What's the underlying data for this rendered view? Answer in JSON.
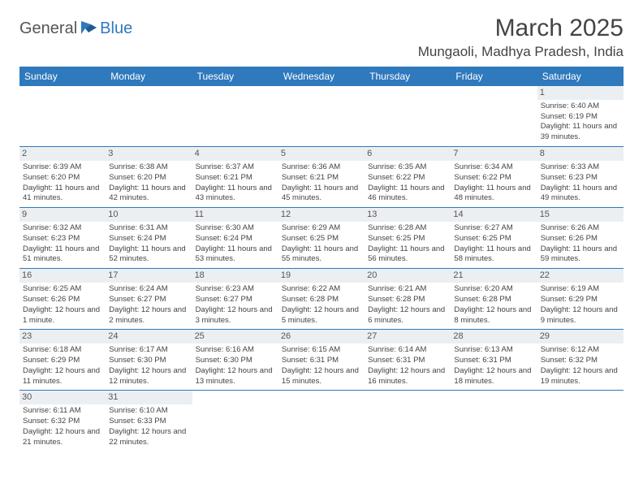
{
  "logo": {
    "general": "General",
    "blue": "Blue"
  },
  "title": "March 2025",
  "location": "Mungaoli, Madhya Pradesh, India",
  "colors": {
    "header_bg": "#2f79bd",
    "header_text": "#ffffff",
    "border": "#2f79bd",
    "daynum_bg": "#eceff2",
    "text": "#444444"
  },
  "day_headers": [
    "Sunday",
    "Monday",
    "Tuesday",
    "Wednesday",
    "Thursday",
    "Friday",
    "Saturday"
  ],
  "weeks": [
    [
      {
        "n": "",
        "sr": "",
        "ss": "",
        "dl": ""
      },
      {
        "n": "",
        "sr": "",
        "ss": "",
        "dl": ""
      },
      {
        "n": "",
        "sr": "",
        "ss": "",
        "dl": ""
      },
      {
        "n": "",
        "sr": "",
        "ss": "",
        "dl": ""
      },
      {
        "n": "",
        "sr": "",
        "ss": "",
        "dl": ""
      },
      {
        "n": "",
        "sr": "",
        "ss": "",
        "dl": ""
      },
      {
        "n": "1",
        "sr": "Sunrise: 6:40 AM",
        "ss": "Sunset: 6:19 PM",
        "dl": "Daylight: 11 hours and 39 minutes."
      }
    ],
    [
      {
        "n": "2",
        "sr": "Sunrise: 6:39 AM",
        "ss": "Sunset: 6:20 PM",
        "dl": "Daylight: 11 hours and 41 minutes."
      },
      {
        "n": "3",
        "sr": "Sunrise: 6:38 AM",
        "ss": "Sunset: 6:20 PM",
        "dl": "Daylight: 11 hours and 42 minutes."
      },
      {
        "n": "4",
        "sr": "Sunrise: 6:37 AM",
        "ss": "Sunset: 6:21 PM",
        "dl": "Daylight: 11 hours and 43 minutes."
      },
      {
        "n": "5",
        "sr": "Sunrise: 6:36 AM",
        "ss": "Sunset: 6:21 PM",
        "dl": "Daylight: 11 hours and 45 minutes."
      },
      {
        "n": "6",
        "sr": "Sunrise: 6:35 AM",
        "ss": "Sunset: 6:22 PM",
        "dl": "Daylight: 11 hours and 46 minutes."
      },
      {
        "n": "7",
        "sr": "Sunrise: 6:34 AM",
        "ss": "Sunset: 6:22 PM",
        "dl": "Daylight: 11 hours and 48 minutes."
      },
      {
        "n": "8",
        "sr": "Sunrise: 6:33 AM",
        "ss": "Sunset: 6:23 PM",
        "dl": "Daylight: 11 hours and 49 minutes."
      }
    ],
    [
      {
        "n": "9",
        "sr": "Sunrise: 6:32 AM",
        "ss": "Sunset: 6:23 PM",
        "dl": "Daylight: 11 hours and 51 minutes."
      },
      {
        "n": "10",
        "sr": "Sunrise: 6:31 AM",
        "ss": "Sunset: 6:24 PM",
        "dl": "Daylight: 11 hours and 52 minutes."
      },
      {
        "n": "11",
        "sr": "Sunrise: 6:30 AM",
        "ss": "Sunset: 6:24 PM",
        "dl": "Daylight: 11 hours and 53 minutes."
      },
      {
        "n": "12",
        "sr": "Sunrise: 6:29 AM",
        "ss": "Sunset: 6:25 PM",
        "dl": "Daylight: 11 hours and 55 minutes."
      },
      {
        "n": "13",
        "sr": "Sunrise: 6:28 AM",
        "ss": "Sunset: 6:25 PM",
        "dl": "Daylight: 11 hours and 56 minutes."
      },
      {
        "n": "14",
        "sr": "Sunrise: 6:27 AM",
        "ss": "Sunset: 6:25 PM",
        "dl": "Daylight: 11 hours and 58 minutes."
      },
      {
        "n": "15",
        "sr": "Sunrise: 6:26 AM",
        "ss": "Sunset: 6:26 PM",
        "dl": "Daylight: 11 hours and 59 minutes."
      }
    ],
    [
      {
        "n": "16",
        "sr": "Sunrise: 6:25 AM",
        "ss": "Sunset: 6:26 PM",
        "dl": "Daylight: 12 hours and 1 minute."
      },
      {
        "n": "17",
        "sr": "Sunrise: 6:24 AM",
        "ss": "Sunset: 6:27 PM",
        "dl": "Daylight: 12 hours and 2 minutes."
      },
      {
        "n": "18",
        "sr": "Sunrise: 6:23 AM",
        "ss": "Sunset: 6:27 PM",
        "dl": "Daylight: 12 hours and 3 minutes."
      },
      {
        "n": "19",
        "sr": "Sunrise: 6:22 AM",
        "ss": "Sunset: 6:28 PM",
        "dl": "Daylight: 12 hours and 5 minutes."
      },
      {
        "n": "20",
        "sr": "Sunrise: 6:21 AM",
        "ss": "Sunset: 6:28 PM",
        "dl": "Daylight: 12 hours and 6 minutes."
      },
      {
        "n": "21",
        "sr": "Sunrise: 6:20 AM",
        "ss": "Sunset: 6:28 PM",
        "dl": "Daylight: 12 hours and 8 minutes."
      },
      {
        "n": "22",
        "sr": "Sunrise: 6:19 AM",
        "ss": "Sunset: 6:29 PM",
        "dl": "Daylight: 12 hours and 9 minutes."
      }
    ],
    [
      {
        "n": "23",
        "sr": "Sunrise: 6:18 AM",
        "ss": "Sunset: 6:29 PM",
        "dl": "Daylight: 12 hours and 11 minutes."
      },
      {
        "n": "24",
        "sr": "Sunrise: 6:17 AM",
        "ss": "Sunset: 6:30 PM",
        "dl": "Daylight: 12 hours and 12 minutes."
      },
      {
        "n": "25",
        "sr": "Sunrise: 6:16 AM",
        "ss": "Sunset: 6:30 PM",
        "dl": "Daylight: 12 hours and 13 minutes."
      },
      {
        "n": "26",
        "sr": "Sunrise: 6:15 AM",
        "ss": "Sunset: 6:31 PM",
        "dl": "Daylight: 12 hours and 15 minutes."
      },
      {
        "n": "27",
        "sr": "Sunrise: 6:14 AM",
        "ss": "Sunset: 6:31 PM",
        "dl": "Daylight: 12 hours and 16 minutes."
      },
      {
        "n": "28",
        "sr": "Sunrise: 6:13 AM",
        "ss": "Sunset: 6:31 PM",
        "dl": "Daylight: 12 hours and 18 minutes."
      },
      {
        "n": "29",
        "sr": "Sunrise: 6:12 AM",
        "ss": "Sunset: 6:32 PM",
        "dl": "Daylight: 12 hours and 19 minutes."
      }
    ],
    [
      {
        "n": "30",
        "sr": "Sunrise: 6:11 AM",
        "ss": "Sunset: 6:32 PM",
        "dl": "Daylight: 12 hours and 21 minutes."
      },
      {
        "n": "31",
        "sr": "Sunrise: 6:10 AM",
        "ss": "Sunset: 6:33 PM",
        "dl": "Daylight: 12 hours and 22 minutes."
      },
      {
        "n": "",
        "sr": "",
        "ss": "",
        "dl": ""
      },
      {
        "n": "",
        "sr": "",
        "ss": "",
        "dl": ""
      },
      {
        "n": "",
        "sr": "",
        "ss": "",
        "dl": ""
      },
      {
        "n": "",
        "sr": "",
        "ss": "",
        "dl": ""
      },
      {
        "n": "",
        "sr": "",
        "ss": "",
        "dl": ""
      }
    ]
  ]
}
